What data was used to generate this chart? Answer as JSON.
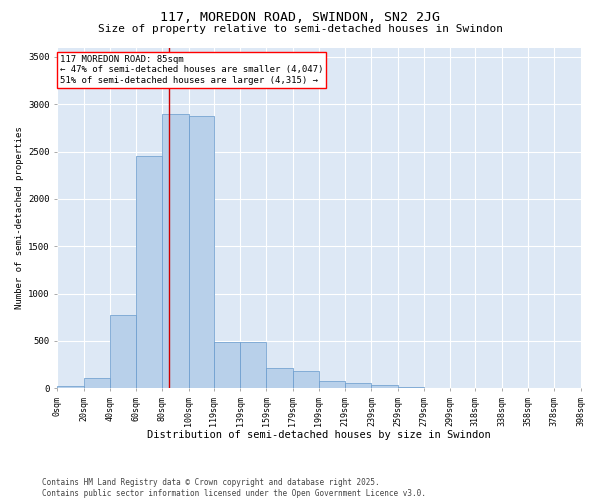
{
  "title": "117, MOREDON ROAD, SWINDON, SN2 2JG",
  "subtitle": "Size of property relative to semi-detached houses in Swindon",
  "xlabel": "Distribution of semi-detached houses by size in Swindon",
  "ylabel": "Number of semi-detached properties",
  "bar_color": "#b8d0ea",
  "bar_edge_color": "#6699cc",
  "background_color": "#dde8f5",
  "grid_color": "#ffffff",
  "annotation_text": "117 MOREDON ROAD: 85sqm\n← 47% of semi-detached houses are smaller (4,047)\n51% of semi-detached houses are larger (4,315) →",
  "vline_x": 85,
  "vline_color": "#cc0000",
  "bins": [
    0,
    20,
    40,
    60,
    80,
    100,
    119,
    139,
    159,
    179,
    199,
    219,
    239,
    259,
    279,
    299,
    318,
    338,
    358,
    378,
    398
  ],
  "bin_labels": [
    "0sqm",
    "20sqm",
    "40sqm",
    "60sqm",
    "80sqm",
    "100sqm",
    "119sqm",
    "139sqm",
    "159sqm",
    "179sqm",
    "199sqm",
    "219sqm",
    "239sqm",
    "259sqm",
    "279sqm",
    "299sqm",
    "318sqm",
    "338sqm",
    "358sqm",
    "378sqm",
    "398sqm"
  ],
  "bar_heights": [
    25,
    110,
    770,
    2450,
    2900,
    2880,
    490,
    490,
    210,
    185,
    75,
    55,
    30,
    8,
    4,
    4,
    4,
    0,
    0,
    0
  ],
  "ylim": [
    0,
    3600
  ],
  "yticks": [
    0,
    500,
    1000,
    1500,
    2000,
    2500,
    3000,
    3500
  ],
  "footer_text": "Contains HM Land Registry data © Crown copyright and database right 2025.\nContains public sector information licensed under the Open Government Licence v3.0.",
  "title_fontsize": 9.5,
  "subtitle_fontsize": 8,
  "xlabel_fontsize": 7.5,
  "ylabel_fontsize": 6.5,
  "tick_fontsize": 6,
  "annotation_fontsize": 6.5,
  "footer_fontsize": 5.5
}
